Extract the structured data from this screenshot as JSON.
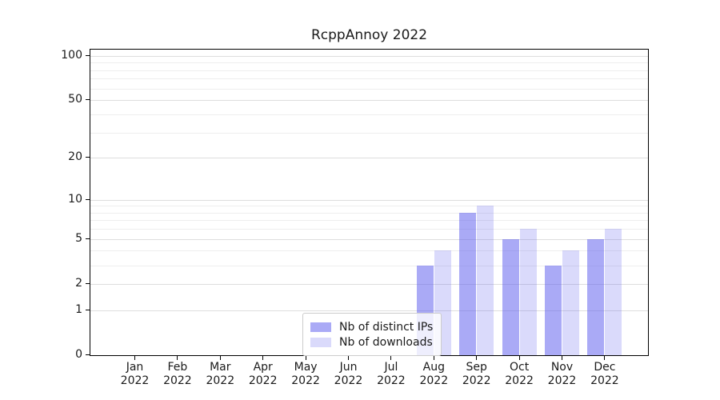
{
  "title": "RcppAnnoy 2022",
  "legend": {
    "items": [
      {
        "label": "Nb of distinct IPs",
        "color": "rgba(85,85,238,0.50)"
      },
      {
        "label": "Nb of downloads",
        "color": "rgba(85,85,238,0.22)"
      }
    ]
  },
  "chart_data": {
    "type": "bar",
    "title": "RcppAnnoy 2022",
    "x_categories": [
      "Jan 2022",
      "Feb 2022",
      "Mar 2022",
      "Apr 2022",
      "May 2022",
      "Jun 2022",
      "Jul 2022",
      "Aug 2022",
      "Sep 2022",
      "Oct 2022",
      "Nov 2022",
      "Dec 2022"
    ],
    "series": [
      {
        "name": "Nb of distinct IPs",
        "color": "rgba(85,85,238,0.50)",
        "values": [
          0,
          0,
          0,
          0,
          0,
          0,
          0,
          3,
          8,
          5,
          3,
          5
        ]
      },
      {
        "name": "Nb of downloads",
        "color": "rgba(85,85,238,0.22)",
        "values": [
          0,
          0,
          0,
          0,
          0,
          0,
          0,
          4,
          9,
          6,
          4,
          6
        ]
      }
    ],
    "xlabel": "",
    "ylabel": "",
    "y_scale": "log1p",
    "y_ticks": [
      0,
      1,
      2,
      5,
      10,
      20,
      50,
      100
    ],
    "y_minor_gridlines": [
      3,
      4,
      6,
      7,
      8,
      9,
      30,
      40,
      60,
      70,
      80,
      90
    ],
    "ylim": [
      0,
      110
    ],
    "grid": "horizontal",
    "legend_position": "lower-center"
  },
  "colors": {
    "background": "#ffffff",
    "axis": "#000000",
    "grid_major": "#dedede",
    "grid_minor": "#eeeeee",
    "text": "#1a1a1a"
  }
}
